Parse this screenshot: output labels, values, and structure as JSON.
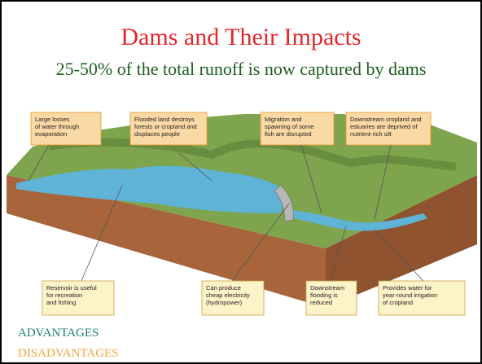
{
  "header": {
    "title": "Dams and Their Impacts",
    "subtitle": "25-50% of the total runoff is now captured by dams"
  },
  "callouts_top": [
    [
      "Large losses",
      "of water through",
      "evaporation"
    ],
    [
      "Flooded land destroys",
      "forests or cropland and",
      "displaces people"
    ],
    [
      "Migration and",
      "spawning of some",
      "fish are disrupted"
    ],
    [
      "Downstream cropland and",
      "estuaries are deprived of",
      "nutrient-rich silt"
    ]
  ],
  "callouts_bottom": [
    [
      "Reservoir is useful",
      "for recreation",
      "and fishing"
    ],
    [
      "Can produce",
      "cheap electricity",
      "(hydropower)"
    ],
    [
      "Downstream",
      "flooding is",
      "reduced"
    ],
    [
      "Provides water for",
      "year-round irrigation",
      "of cropland"
    ]
  ],
  "legend": {
    "advantages": "ADVANTAGES",
    "disadvantages": "DISADVANTAGES"
  }
}
